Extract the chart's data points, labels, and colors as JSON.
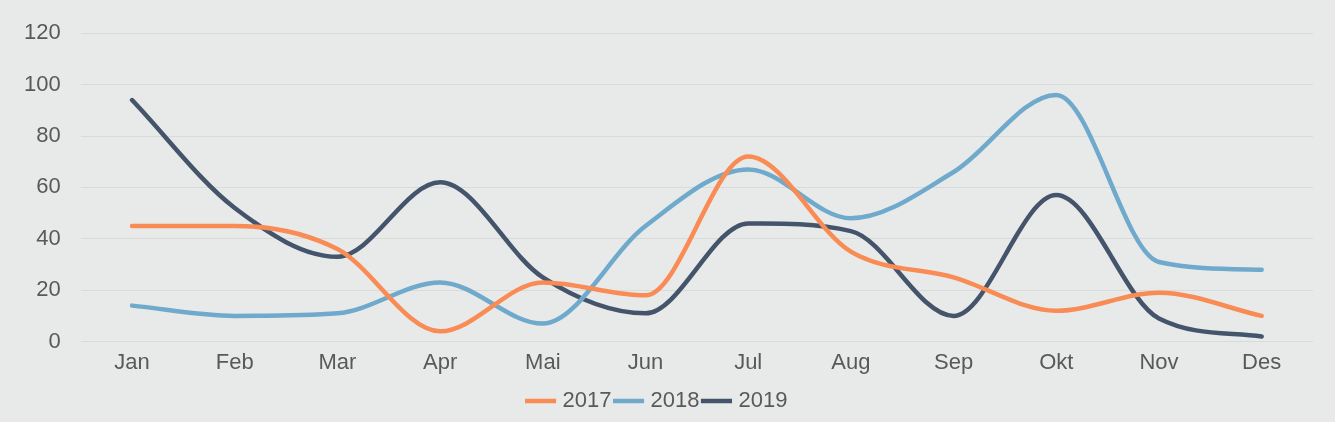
{
  "chart_data": {
    "type": "line",
    "categories": [
      "Jan",
      "Feb",
      "Mar",
      "Apr",
      "Mai",
      "Jun",
      "Jul",
      "Aug",
      "Sep",
      "Okt",
      "Nov",
      "Des"
    ],
    "series": [
      {
        "name": "2017",
        "color": "#f98b55",
        "values": [
          45,
          45,
          36,
          4,
          23,
          18,
          72,
          35,
          25,
          12,
          19,
          10
        ]
      },
      {
        "name": "2018",
        "color": "#6fa9cb",
        "values": [
          14,
          10,
          11,
          23,
          7,
          45,
          67,
          48,
          66,
          96,
          31,
          28
        ]
      },
      {
        "name": "2019",
        "color": "#44546a",
        "values": [
          94,
          52,
          33,
          62,
          25,
          11,
          46,
          43,
          10,
          57,
          9,
          2
        ]
      }
    ],
    "ylim": [
      0,
      120
    ],
    "yticks": [
      0,
      20,
      40,
      60,
      80,
      100,
      120
    ],
    "grid": "y",
    "legend": "bottom",
    "marker": "none",
    "line_style": "solid"
  }
}
